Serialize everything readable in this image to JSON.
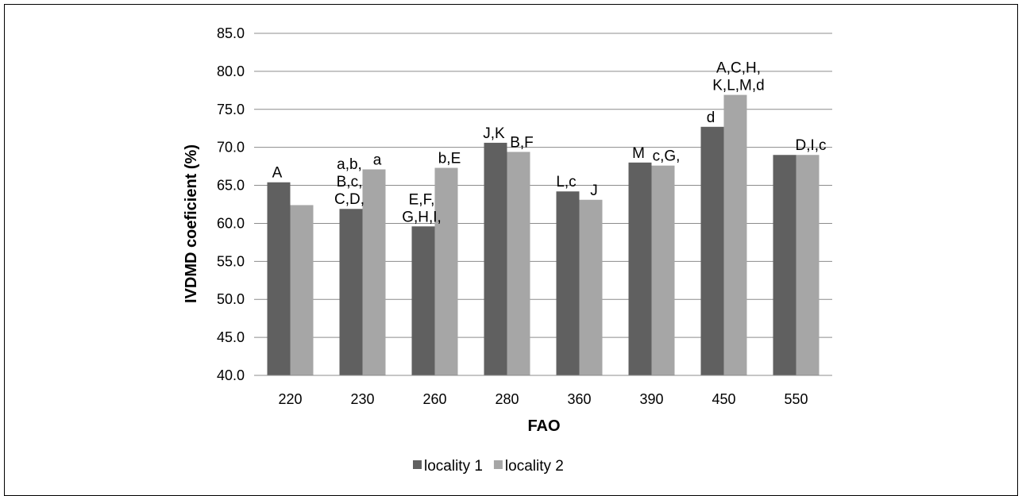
{
  "chart_data": {
    "type": "bar",
    "xlabel": "FAO",
    "ylabel": "IVDMD coeficient (%)",
    "ylim": [
      40,
      85
    ],
    "ytick_step": 5,
    "grid": true,
    "legend_position": "bottom",
    "categories": [
      "220",
      "230",
      "260",
      "280",
      "360",
      "390",
      "450",
      "550"
    ],
    "series": [
      {
        "name": "locality 1",
        "color": "#606060",
        "values": [
          65.4,
          61.9,
          59.6,
          70.6,
          64.2,
          68.0,
          72.7,
          69.0
        ],
        "labels": [
          [
            "A"
          ],
          [
            "a,b,",
            "B,c,",
            "C,D,"
          ],
          [
            "E,F,",
            "G,H,I,"
          ],
          [
            "J,K"
          ],
          [
            "L,c"
          ],
          [
            "M"
          ],
          [
            "d"
          ],
          []
        ]
      },
      {
        "name": "locality 2",
        "color": "#a6a6a6",
        "values": [
          62.4,
          67.1,
          67.3,
          69.4,
          63.1,
          67.6,
          76.9,
          69.0
        ],
        "labels": [
          [],
          [
            "a"
          ],
          [
            "b,E"
          ],
          [
            "B,F"
          ],
          [
            "J"
          ],
          [
            "c,G,"
          ],
          [
            "A,C,H,",
            "K,L,M,d"
          ],
          [
            "D,I,c"
          ]
        ]
      }
    ]
  }
}
